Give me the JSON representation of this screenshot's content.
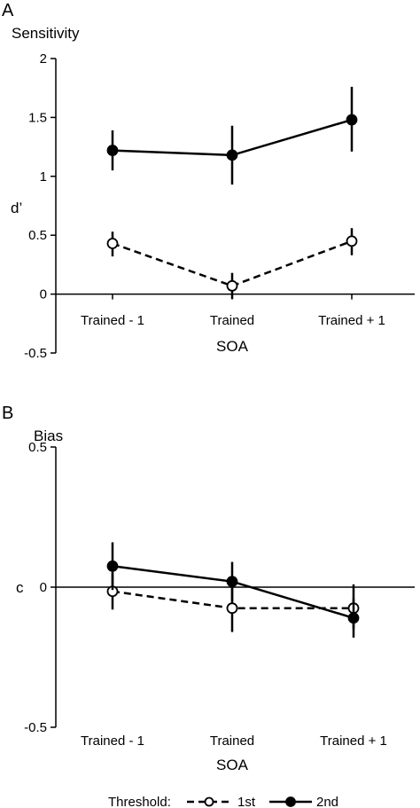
{
  "chart_data": [
    {
      "panel": "A",
      "type": "line",
      "title": "Sensitivity",
      "ylabel": "d’",
      "xlabel": "SOA",
      "categories": [
        "Trained - 1",
        "Trained",
        "Trained + 1"
      ],
      "ylim": [
        -0.5,
        2
      ],
      "yticks": [
        "-0.5",
        "0",
        "0.5",
        "1",
        "1.5",
        "2"
      ],
      "series": [
        {
          "name": "2nd",
          "style": "solid",
          "marker": "filled",
          "values": [
            1.22,
            1.18,
            1.48
          ],
          "err_low": [
            1.05,
            0.93,
            1.21
          ],
          "err_high": [
            1.39,
            1.43,
            1.76
          ]
        },
        {
          "name": "1st",
          "style": "dashed",
          "marker": "open",
          "values": [
            0.43,
            0.07,
            0.45
          ],
          "err_low": [
            0.32,
            -0.04,
            0.33
          ],
          "err_high": [
            0.53,
            0.18,
            0.56
          ]
        }
      ]
    },
    {
      "panel": "B",
      "type": "line",
      "title": "Bias",
      "ylabel": "c",
      "xlabel": "SOA",
      "categories": [
        "Trained - 1",
        "Trained",
        "Trained + 1"
      ],
      "ylim": [
        -0.5,
        0.5
      ],
      "yticks": [
        "-0.5",
        "0",
        "0.5"
      ],
      "series": [
        {
          "name": "2nd",
          "style": "solid",
          "marker": "filled",
          "values": [
            0.075,
            0.02,
            -0.11
          ],
          "err_low": [
            -0.01,
            -0.05,
            -0.18
          ],
          "err_high": [
            0.16,
            0.09,
            -0.04
          ]
        },
        {
          "name": "1st",
          "style": "dashed",
          "marker": "open",
          "values": [
            -0.015,
            -0.075,
            -0.075
          ],
          "err_low": [
            -0.08,
            -0.16,
            -0.15
          ],
          "err_high": [
            0.05,
            0.01,
            0.01
          ]
        }
      ]
    }
  ],
  "legend": {
    "title": "Threshold:",
    "entries": [
      "1st",
      "2nd"
    ]
  }
}
